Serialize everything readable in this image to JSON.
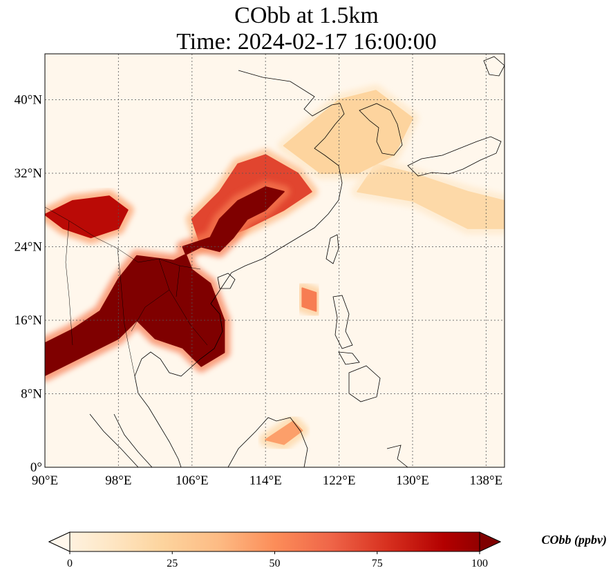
{
  "title_line1": "CObb at 1.5km",
  "title_line2": "Time: 2024-02-17 16:00:00",
  "map": {
    "lon_range": [
      90,
      140
    ],
    "lat_range": [
      0,
      45
    ],
    "lon_ticks": [
      {
        "value": 90,
        "label": "90°E"
      },
      {
        "value": 98,
        "label": "98°E"
      },
      {
        "value": 106,
        "label": "106°E"
      },
      {
        "value": 114,
        "label": "114°E"
      },
      {
        "value": 122,
        "label": "122°E"
      },
      {
        "value": 130,
        "label": "130°E"
      },
      {
        "value": 138,
        "label": "138°E"
      }
    ],
    "lat_ticks": [
      {
        "value": 0,
        "label": "0°"
      },
      {
        "value": 8,
        "label": "8°N"
      },
      {
        "value": 16,
        "label": "16°N"
      },
      {
        "value": 24,
        "label": "24°N"
      },
      {
        "value": 32,
        "label": "32°N"
      },
      {
        "value": 40,
        "label": "40°N"
      }
    ],
    "gridlines": true,
    "colormap": "OrRd",
    "colors": [
      "#fff7ec",
      "#fee8c8",
      "#fdd49e",
      "#fdbb84",
      "#fc8d59",
      "#ef6548",
      "#d7301f",
      "#b30000",
      "#7f0000"
    ]
  },
  "colorbar": {
    "label": "CObb (ppbv)",
    "min": 0,
    "max": 100,
    "extend": "both",
    "ticks": [
      {
        "value": 0,
        "label": "0"
      },
      {
        "value": 25,
        "label": "25"
      },
      {
        "value": 50,
        "label": "50"
      },
      {
        "value": 75,
        "label": "75"
      },
      {
        "value": 100,
        "label": "100"
      }
    ]
  },
  "plumes": [
    {
      "name": "indochina-core",
      "level": 100,
      "points": [
        [
          90,
          10
        ],
        [
          95,
          12.5
        ],
        [
          98,
          14
        ],
        [
          100,
          16
        ],
        [
          102,
          14
        ],
        [
          105,
          13
        ],
        [
          107,
          11
        ],
        [
          109.5,
          12.5
        ],
        [
          109.5,
          16
        ],
        [
          108,
          20
        ],
        [
          106,
          21.5
        ],
        [
          105,
          24
        ],
        [
          108,
          25
        ],
        [
          109,
          27
        ],
        [
          111,
          29
        ],
        [
          114,
          30.5
        ],
        [
          116,
          30
        ],
        [
          114,
          28
        ],
        [
          112,
          27
        ],
        [
          110.5,
          25
        ],
        [
          109,
          23.5
        ],
        [
          107,
          24
        ],
        [
          104,
          22.5
        ],
        [
          100,
          23
        ],
        [
          98,
          20.5
        ],
        [
          96,
          17
        ],
        [
          93,
          15
        ],
        [
          90,
          13.5
        ]
      ]
    },
    {
      "name": "myanmar-patch",
      "level": 85,
      "points": [
        [
          93,
          29
        ],
        [
          97,
          29.5
        ],
        [
          99,
          28
        ],
        [
          98,
          26
        ],
        [
          95,
          25
        ],
        [
          92,
          26
        ],
        [
          90,
          27.5
        ]
      ]
    },
    {
      "name": "south-china-plume",
      "level": 70,
      "points": [
        [
          107,
          24
        ],
        [
          112,
          26
        ],
        [
          116,
          28
        ],
        [
          119,
          30
        ],
        [
          117.5,
          32
        ],
        [
          114,
          34
        ],
        [
          111,
          33
        ],
        [
          109,
          30
        ],
        [
          106,
          27
        ]
      ]
    },
    {
      "name": "taiwan-strait",
      "level": 55,
      "points": [
        [
          118,
          19.5
        ],
        [
          119.5,
          19
        ],
        [
          119.5,
          17
        ],
        [
          118,
          17.5
        ]
      ]
    },
    {
      "name": "borneo-patch",
      "level": 45,
      "points": [
        [
          114,
          3
        ],
        [
          117,
          5
        ],
        [
          118,
          4
        ],
        [
          116,
          2.5
        ]
      ]
    },
    {
      "name": "yellow-sea-haze",
      "level": 25,
      "points": [
        [
          116,
          35
        ],
        [
          122,
          40
        ],
        [
          126,
          41
        ],
        [
          130,
          38
        ],
        [
          128,
          34
        ],
        [
          124,
          32
        ],
        [
          120,
          32
        ]
      ]
    },
    {
      "name": "pacific-band",
      "level": 22,
      "points": [
        [
          124,
          30
        ],
        [
          130,
          29
        ],
        [
          136,
          26
        ],
        [
          140,
          26
        ],
        [
          140,
          29
        ],
        [
          136,
          30
        ],
        [
          130,
          32
        ],
        [
          126,
          33
        ]
      ]
    }
  ]
}
